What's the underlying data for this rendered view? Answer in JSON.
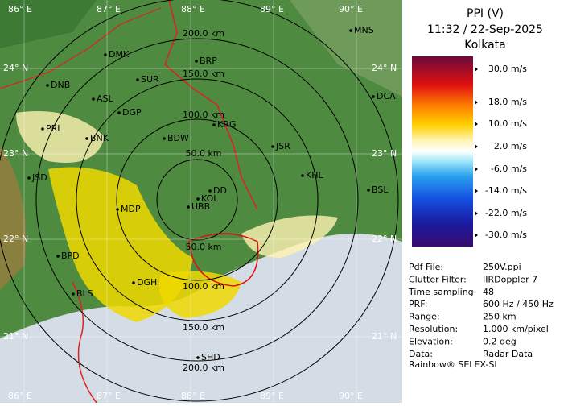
{
  "map": {
    "longitude_labels": [
      "86° E",
      "87° E",
      "88° E",
      "89° E",
      "90° E"
    ],
    "latitude_labels": [
      "24° N",
      "23° N",
      "22° N",
      "21° N"
    ],
    "range_labels": [
      "200.0 km",
      "150.0 km",
      "100.0 km",
      "50.0 km"
    ],
    "cities": [
      "MNS",
      "DMK",
      "BRP",
      "DNB",
      "SUR",
      "DCA",
      "ASL",
      "DGP",
      "KRG",
      "PRL",
      "BNK",
      "BDW",
      "JSR",
      "KHL",
      "JSD",
      "BSL",
      "DD",
      "KOL",
      "UBB",
      "MDP",
      "BPD",
      "DGH",
      "BLS",
      "SHD"
    ]
  },
  "panel": {
    "title": "PPI (V)",
    "datetime": "11:32 / 22-Sep-2025",
    "station": "Kolkata",
    "legend": [
      "30.0 m/s",
      "18.0 m/s",
      "10.0 m/s",
      "2.0 m/s",
      "-6.0 m/s",
      "-14.0 m/s",
      "-22.0 m/s",
      "-30.0 m/s"
    ],
    "info": [
      [
        "Pdf File:",
        "250V.ppi"
      ],
      [
        "Clutter Filter:",
        "IIRDoppler 7"
      ],
      [
        "Time sampling:",
        "48"
      ],
      [
        "PRF:",
        "600 Hz / 450 Hz"
      ],
      [
        "Range:",
        "250 km"
      ],
      [
        "Resolution:",
        "1.000 km/pixel"
      ],
      [
        "Elevation:",
        "0.2 deg"
      ],
      [
        "Data:",
        "Radar Data"
      ]
    ],
    "footer": "Rainbow® SELEX-SI"
  }
}
